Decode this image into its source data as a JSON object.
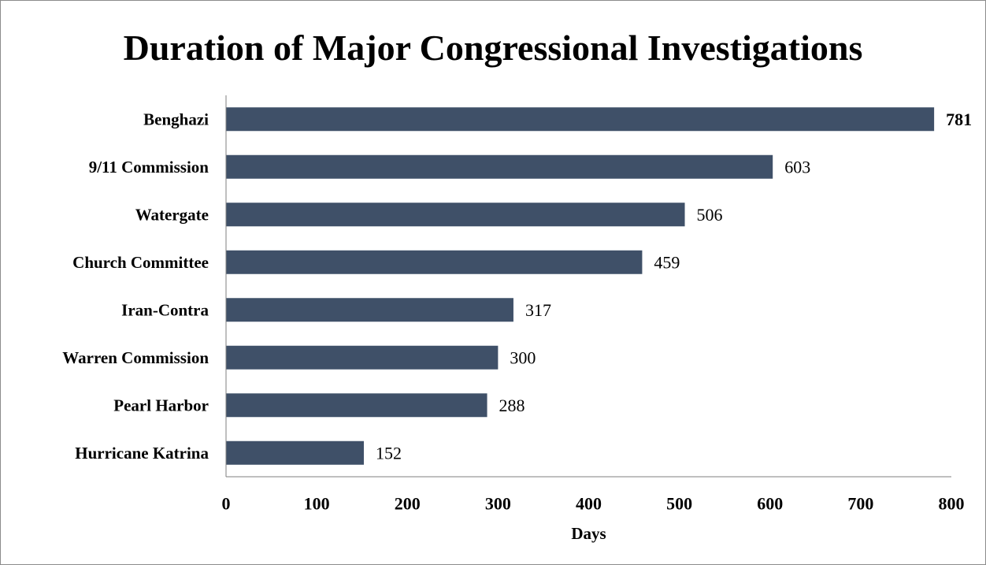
{
  "chart_data": {
    "type": "bar",
    "orientation": "horizontal",
    "title": "Duration of Major Congressional Investigations",
    "xlabel": "Days",
    "ylabel": "",
    "categories": [
      "Benghazi",
      "9/11 Commission",
      "Watergate",
      "Church Committee",
      "Iran-Contra",
      "Warren Commission",
      "Pearl Harbor",
      "Hurricane Katrina"
    ],
    "values": [
      781,
      603,
      506,
      459,
      317,
      300,
      288,
      152
    ],
    "data_labels": [
      "781",
      "603",
      "506",
      "459",
      "317",
      "300",
      "288",
      "152"
    ],
    "highlighted_label": "Benghazi",
    "xlim": [
      0,
      800
    ],
    "xticks": [
      0,
      100,
      200,
      300,
      400,
      500,
      600,
      700,
      800
    ],
    "xtick_labels": [
      "0",
      "100",
      "200",
      "300",
      "400",
      "500",
      "600",
      "700",
      "800"
    ],
    "grid": false,
    "legend": "none",
    "bar_color": "#3f5068",
    "axis_color": "#7f7f7f"
  }
}
